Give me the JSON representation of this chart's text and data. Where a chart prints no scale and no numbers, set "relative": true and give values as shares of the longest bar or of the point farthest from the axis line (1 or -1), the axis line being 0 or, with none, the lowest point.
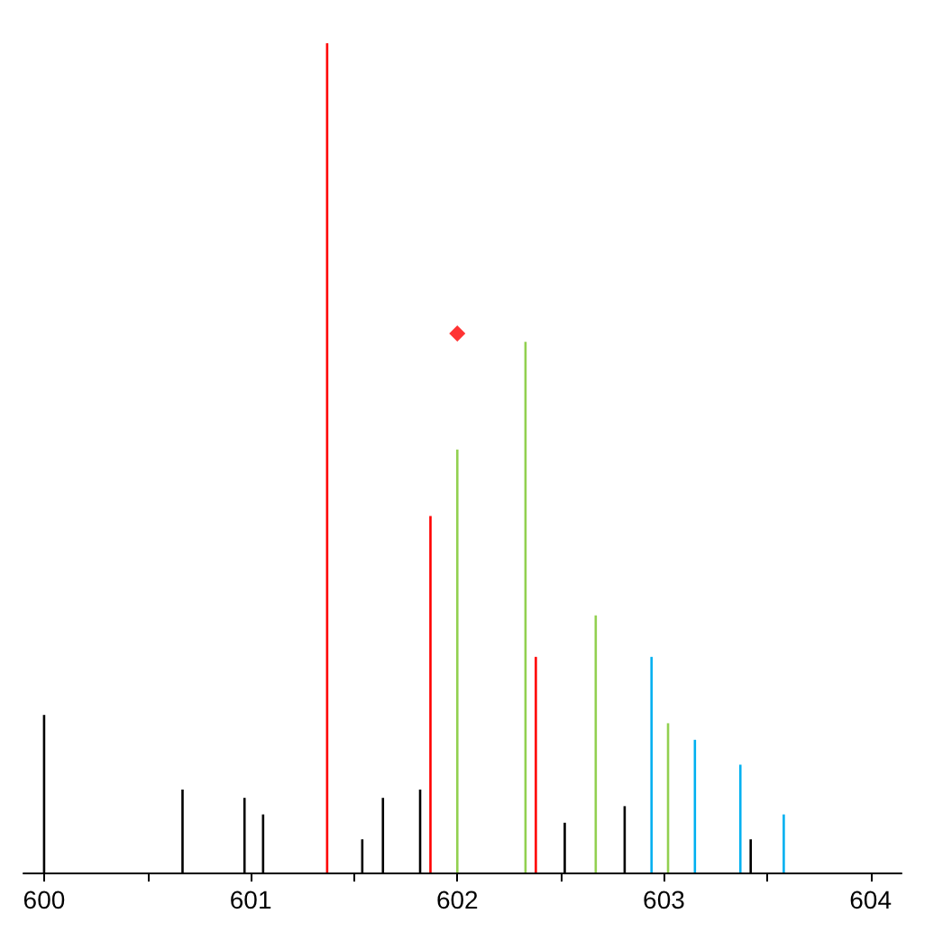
{
  "chart_data": {
    "type": "bar",
    "relative": true,
    "xlim": [
      599.9,
      604.15
    ],
    "xticks": [
      600,
      {
        "value": 600.5,
        "label": null
      },
      601,
      {
        "value": 601.5,
        "label": null
      },
      602,
      {
        "value": 602.5,
        "label": null
      },
      603,
      {
        "value": 603.5,
        "label": null
      },
      604
    ],
    "series": [
      {
        "color": "#000000",
        "x": [
          600.0,
          600.67,
          600.97,
          601.06,
          601.54,
          601.64,
          601.82,
          602.52,
          602.81,
          603.42
        ],
        "values": [
          0.19,
          0.1,
          0.09,
          0.07,
          0.04,
          0.09,
          0.1,
          0.06,
          0.08,
          0.04
        ]
      },
      {
        "color": "#ff0000",
        "x": [
          601.37,
          601.87,
          602.38
        ],
        "values": [
          1,
          0.43,
          0.26
        ]
      },
      {
        "color": "#92d050",
        "x": [
          602.0,
          602.33,
          602.67,
          603.02
        ],
        "values": [
          0.51,
          0.64,
          0.31,
          0.18
        ]
      },
      {
        "color": "#00b0f0",
        "x": [
          602.94,
          603.15,
          603.37,
          603.58
        ],
        "values": [
          0.26,
          0.16,
          0.13,
          0.07
        ]
      },
      {
        "type": "scatter",
        "marker": "diamond",
        "color": "#ff0000",
        "x": [
          602.0
        ],
        "values": [
          0.65
        ]
      }
    ]
  }
}
